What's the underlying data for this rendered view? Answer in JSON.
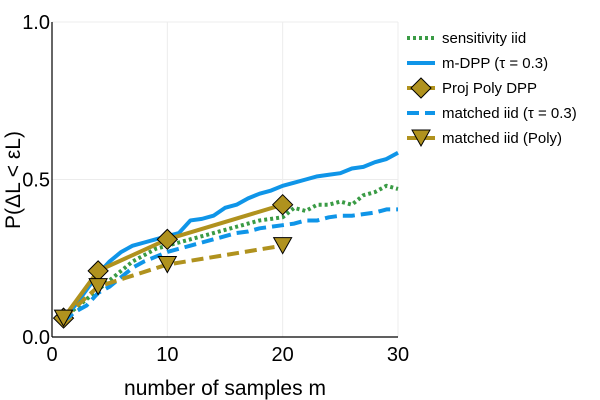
{
  "chart_data": {
    "type": "line",
    "title": "",
    "xlabel": "number of samples m",
    "ylabel": "P(ΔL < εL)",
    "xlim": [
      0,
      30
    ],
    "ylim": [
      0,
      1
    ],
    "xticks": [
      0,
      10,
      20,
      30
    ],
    "xtick_labels": [
      "0",
      "10",
      "20",
      "30"
    ],
    "yticks": [
      0,
      0.5,
      1
    ],
    "ytick_labels": [
      "0.0",
      "0.5",
      "1.0"
    ],
    "grid": true,
    "legend_position": "top-right",
    "series": [
      {
        "name": "sensitivity iid",
        "color": "#3a9b45",
        "style": "dotted",
        "marker": "none",
        "x": [
          1,
          2,
          3,
          4,
          5,
          6,
          7,
          8,
          9,
          10,
          11,
          12,
          13,
          14,
          15,
          16,
          17,
          18,
          19,
          20,
          21,
          22,
          23,
          24,
          25,
          26,
          27,
          28,
          29,
          30
        ],
        "y": [
          0.06,
          0.09,
          0.12,
          0.15,
          0.18,
          0.21,
          0.24,
          0.26,
          0.28,
          0.29,
          0.3,
          0.31,
          0.32,
          0.33,
          0.34,
          0.35,
          0.36,
          0.37,
          0.375,
          0.38,
          0.41,
          0.4,
          0.42,
          0.42,
          0.43,
          0.42,
          0.45,
          0.46,
          0.48,
          0.47
        ]
      },
      {
        "name": "m-DPP (τ = 0.3)",
        "color": "#0f95e8",
        "style": "solid",
        "marker": "none",
        "x": [
          1,
          2,
          3,
          4,
          5,
          6,
          7,
          8,
          9,
          10,
          11,
          12,
          13,
          14,
          15,
          16,
          17,
          18,
          19,
          20,
          21,
          22,
          23,
          24,
          25,
          26,
          27,
          28,
          29,
          30
        ],
        "y": [
          0.06,
          0.1,
          0.15,
          0.2,
          0.24,
          0.27,
          0.29,
          0.3,
          0.31,
          0.32,
          0.33,
          0.37,
          0.375,
          0.385,
          0.41,
          0.42,
          0.44,
          0.455,
          0.465,
          0.48,
          0.49,
          0.5,
          0.51,
          0.515,
          0.52,
          0.535,
          0.54,
          0.555,
          0.565,
          0.585
        ]
      },
      {
        "name": "Proj Poly DPP",
        "color": "#b0921e",
        "style": "solid",
        "marker": "diamond",
        "x": [
          1,
          4,
          10,
          20
        ],
        "y": [
          0.06,
          0.21,
          0.31,
          0.42
        ]
      },
      {
        "name": "matched iid (τ = 0.3)",
        "color": "#0f95e8",
        "style": "dashed",
        "marker": "none",
        "x": [
          1,
          2,
          3,
          4,
          5,
          6,
          7,
          8,
          9,
          10,
          11,
          12,
          13,
          14,
          15,
          16,
          17,
          18,
          19,
          20,
          21,
          22,
          23,
          24,
          25,
          26,
          27,
          28,
          29,
          30
        ],
        "y": [
          0.05,
          0.08,
          0.1,
          0.14,
          0.16,
          0.19,
          0.22,
          0.24,
          0.255,
          0.27,
          0.28,
          0.29,
          0.3,
          0.31,
          0.32,
          0.33,
          0.335,
          0.345,
          0.35,
          0.355,
          0.36,
          0.37,
          0.37,
          0.38,
          0.385,
          0.385,
          0.39,
          0.395,
          0.405,
          0.405
        ]
      },
      {
        "name": "matched iid (Poly)",
        "color": "#b0921e",
        "style": "dashed",
        "marker": "triangle-down",
        "x": [
          1,
          4,
          10,
          20
        ],
        "y": [
          0.06,
          0.16,
          0.23,
          0.29
        ]
      }
    ]
  }
}
